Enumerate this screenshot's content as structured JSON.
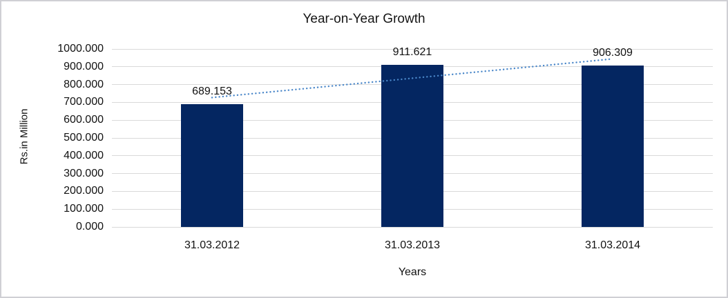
{
  "chart_data": {
    "type": "bar",
    "title": "Year-on-Year Growth",
    "categories": [
      "31.03.2012",
      "31.03.2013",
      "31.03.2014"
    ],
    "values": [
      689.153,
      911.621,
      906.309
    ],
    "value_labels": [
      "689.153",
      "911.621",
      "906.309"
    ],
    "xlabel": "Years",
    "ylabel": "Rs.in Million",
    "ylim": [
      0,
      1000
    ],
    "y_tick_labels": [
      "1000.000",
      "900.000",
      "800.000",
      "700.000",
      "600.000",
      "500.000",
      "400.000",
      "300.000",
      "200.000",
      "100.000",
      "0.000"
    ],
    "grid": true,
    "legend": "none",
    "bar_color": "#042661",
    "gridline_color": "#d9d9d9",
    "trendline": {
      "type": "linear",
      "style": "dotted",
      "color": "#4a87c9",
      "fit_values": [
        727.116,
        835.694,
        944.272
      ]
    }
  }
}
